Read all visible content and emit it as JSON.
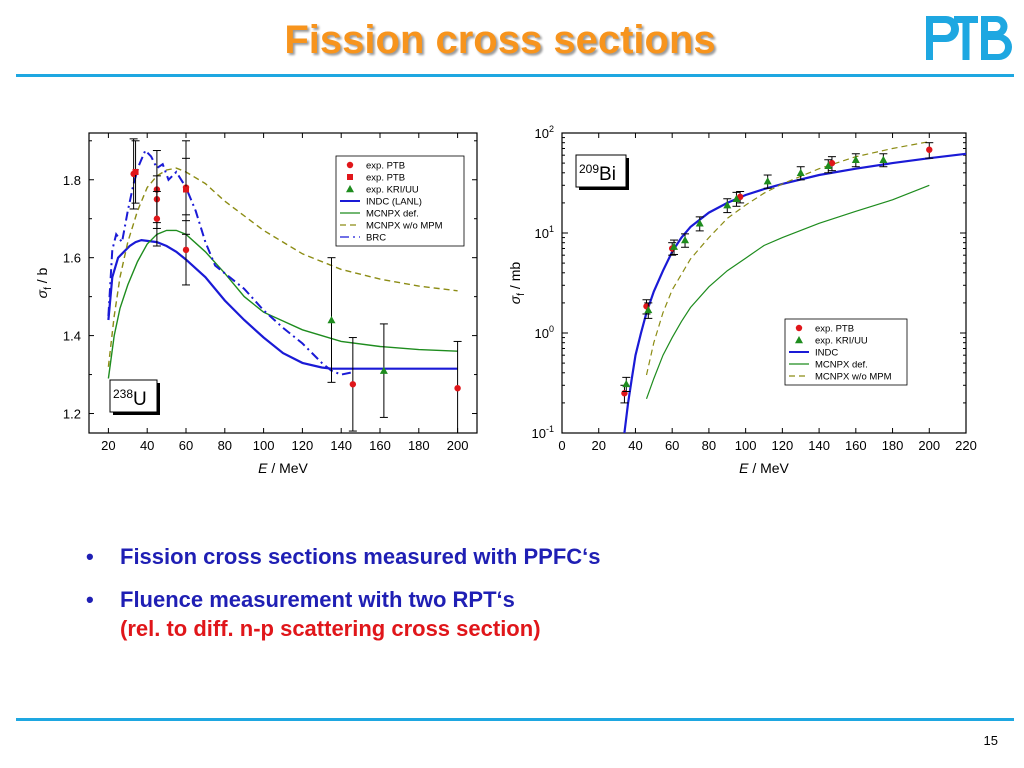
{
  "slide": {
    "title": "Fission cross sections",
    "logo_text": "PTB",
    "page_number": "15",
    "bullets": [
      {
        "text": "Fission cross sections measured with PPFC‘s"
      },
      {
        "text": "Fluence measurement with two RPT‘s",
        "sub_open": "(",
        "sub_text": "rel. to diff. n-p scattering cross section",
        "sub_close": ")"
      }
    ]
  },
  "colors": {
    "title": "#f7941d",
    "rule": "#1ea7e1",
    "bullet_text": "#1f1fb4",
    "bullet_highlight": "#e0161a",
    "exp_ptb": "#e0161a",
    "exp_kri": "#1e8c1e",
    "indc": "#1a1ad6",
    "mcnpx_def": "#1e8c1e",
    "mcnpx_wo_mpm": "#8c8c14",
    "brc": "#1a1ad6"
  },
  "chart_data": [
    {
      "type": "line",
      "panel_label": {
        "sup": "238",
        "base": "U"
      },
      "xlabel": "E",
      "xunit": " / MeV",
      "ylabel": "σ",
      "ysub": "f",
      "yunit": " / b",
      "xlim": [
        10,
        210
      ],
      "ylim": [
        1.15,
        1.92
      ],
      "x_ticks": [
        20,
        40,
        60,
        80,
        100,
        120,
        140,
        160,
        180,
        200
      ],
      "y_ticks": [
        1.2,
        1.4,
        1.6,
        1.8
      ],
      "y_tick_labels": [
        "1.2",
        "1.4",
        "1.6",
        "1.8"
      ],
      "legend_position": "top-right",
      "legend": [
        {
          "label": "exp. PTB",
          "kind": "circle",
          "color": "#e0161a"
        },
        {
          "label": "exp. PTB",
          "kind": "square",
          "color": "#e0161a"
        },
        {
          "label": "exp. KRI/UU",
          "kind": "triangle",
          "color": "#1e8c1e"
        },
        {
          "label": "INDC (LANL)",
          "kind": "solid",
          "color": "#1a1ad6"
        },
        {
          "label": "MCNPX def.",
          "kind": "solid-thin",
          "color": "#1e8c1e"
        },
        {
          "label": "MCNPX w/o MPM",
          "kind": "dashed",
          "color": "#8c8c14"
        },
        {
          "label": "BRC",
          "kind": "dashdot",
          "color": "#1a1ad6"
        }
      ],
      "series": [
        {
          "name": "INDC (LANL)",
          "style": "solid",
          "color": "#1a1ad6",
          "width": 2.2,
          "x": [
            20,
            22,
            25,
            28,
            31,
            34,
            37,
            40,
            45,
            50,
            55,
            60,
            70,
            80,
            90,
            100,
            110,
            120,
            130,
            135,
            140,
            150,
            160,
            180,
            200
          ],
          "y": [
            1.44,
            1.55,
            1.6,
            1.615,
            1.63,
            1.64,
            1.645,
            1.643,
            1.64,
            1.63,
            1.615,
            1.595,
            1.55,
            1.49,
            1.44,
            1.395,
            1.355,
            1.33,
            1.318,
            1.315,
            1.315,
            1.315,
            1.315,
            1.315,
            1.315
          ]
        },
        {
          "name": "MCNPX def.",
          "style": "solid",
          "color": "#1e8c1e",
          "width": 1.4,
          "x": [
            20,
            23,
            26,
            30,
            35,
            40,
            45,
            50,
            55,
            60,
            70,
            80,
            90,
            100,
            120,
            140,
            160,
            180,
            200
          ],
          "y": [
            1.29,
            1.4,
            1.47,
            1.53,
            1.59,
            1.635,
            1.66,
            1.67,
            1.67,
            1.66,
            1.615,
            1.56,
            1.5,
            1.46,
            1.415,
            1.385,
            1.372,
            1.364,
            1.36
          ]
        },
        {
          "name": "MCNPX w/o MPM",
          "style": "dashed",
          "color": "#8c8c14",
          "width": 1.4,
          "x": [
            20,
            23,
            26,
            30,
            35,
            40,
            45,
            50,
            55,
            60,
            70,
            80,
            100,
            120,
            140,
            160,
            180,
            200
          ],
          "y": [
            1.32,
            1.45,
            1.55,
            1.64,
            1.72,
            1.78,
            1.81,
            1.825,
            1.83,
            1.82,
            1.79,
            1.745,
            1.67,
            1.61,
            1.57,
            1.545,
            1.527,
            1.515
          ]
        },
        {
          "name": "BRC",
          "style": "dashdot",
          "color": "#1a1ad6",
          "width": 2.0,
          "x": [
            20,
            22,
            24,
            27,
            30,
            33,
            36,
            39,
            42,
            45,
            48,
            51,
            55,
            60,
            65,
            70,
            75,
            80,
            90,
            100,
            110,
            120,
            130,
            135,
            140,
            145
          ],
          "y": [
            1.45,
            1.62,
            1.66,
            1.64,
            1.72,
            1.79,
            1.84,
            1.875,
            1.86,
            1.83,
            1.84,
            1.8,
            1.82,
            1.78,
            1.72,
            1.64,
            1.58,
            1.56,
            1.52,
            1.465,
            1.42,
            1.38,
            1.33,
            1.31,
            1.3,
            1.305
          ]
        }
      ],
      "points": [
        {
          "series": "exp. PTB",
          "marker": "circle",
          "color": "#e0161a",
          "x": [
            33,
            45,
            45,
            45,
            60,
            60,
            146,
            200
          ],
          "y": [
            1.815,
            1.775,
            1.75,
            1.7,
            1.78,
            1.62,
            1.275,
            1.265
          ],
          "err": [
            0.09,
            0.1,
            0.06,
            0.07,
            0.12,
            0.09,
            0.12,
            0.12
          ]
        },
        {
          "series": "exp. PTB",
          "marker": "square",
          "color": "#e0161a",
          "x": [
            34,
            60
          ],
          "y": [
            1.82,
            1.775
          ],
          "err": [
            0.08,
            0.08
          ]
        },
        {
          "series": "exp. KRI/UU",
          "marker": "triangle",
          "color": "#1e8c1e",
          "x": [
            135,
            162
          ],
          "y": [
            1.44,
            1.31
          ],
          "err": [
            0.16,
            0.12
          ]
        }
      ]
    },
    {
      "type": "line",
      "panel_label": {
        "sup": "209",
        "base": "Bi"
      },
      "xlabel": "E",
      "xunit": " / MeV",
      "ylabel": "σ",
      "ysub": "f",
      "yunit": " / mb",
      "log_y": true,
      "xlim": [
        0,
        220
      ],
      "ylim": [
        -1,
        2
      ],
      "x_ticks": [
        0,
        20,
        40,
        60,
        80,
        100,
        120,
        140,
        160,
        180,
        200,
        220
      ],
      "y_tick_labels": [
        {
          "base": "10",
          "exp": "-1"
        },
        {
          "base": "10",
          "exp": "0"
        },
        {
          "base": "10",
          "exp": "1"
        },
        {
          "base": "10",
          "exp": "2"
        }
      ],
      "legend_position": "center-right",
      "legend": [
        {
          "label": "exp. PTB",
          "kind": "circle",
          "color": "#e0161a"
        },
        {
          "label": "exp. KRI/UU",
          "kind": "triangle",
          "color": "#1e8c1e"
        },
        {
          "label": "INDC",
          "kind": "solid",
          "color": "#1a1ad6"
        },
        {
          "label": "MCNPX def.",
          "kind": "solid-thin",
          "color": "#1e8c1e"
        },
        {
          "label": "MCNPX w/o MPM",
          "kind": "dashed",
          "color": "#8c8c14"
        }
      ],
      "series": [
        {
          "name": "INDC",
          "style": "solid",
          "color": "#1a1ad6",
          "width": 2.2,
          "x": [
            34,
            36,
            38,
            40,
            43,
            46,
            50,
            55,
            60,
            65,
            70,
            80,
            90,
            100,
            110,
            120,
            140,
            160,
            180,
            200,
            220
          ],
          "y": [
            0.1,
            0.2,
            0.35,
            0.6,
            1.0,
            1.6,
            2.6,
            4.2,
            6.5,
            9.0,
            11.5,
            16,
            20,
            24,
            27.5,
            31,
            38,
            44,
            50,
            56,
            62
          ]
        },
        {
          "name": "MCNPX def.",
          "style": "solid",
          "color": "#1e8c1e",
          "width": 1.2,
          "x": [
            46,
            50,
            55,
            60,
            65,
            70,
            80,
            90,
            100,
            110,
            120,
            140,
            160,
            180,
            200
          ],
          "y": [
            0.22,
            0.35,
            0.6,
            0.9,
            1.3,
            1.8,
            2.9,
            4.2,
            5.6,
            7.5,
            9.0,
            12.5,
            16.5,
            21.5,
            30
          ]
        },
        {
          "name": "MCNPX w/o MPM",
          "style": "dashed",
          "color": "#8c8c14",
          "width": 1.2,
          "x": [
            46,
            50,
            55,
            60,
            70,
            80,
            90,
            100,
            110,
            120,
            140,
            160,
            180,
            200
          ],
          "y": [
            0.38,
            0.8,
            1.6,
            2.7,
            5.5,
            9.0,
            14,
            19,
            25,
            31,
            44,
            58,
            70,
            82
          ]
        }
      ],
      "points": [
        {
          "series": "exp. PTB",
          "marker": "circle",
          "color": "#e0161a",
          "x": [
            34,
            46,
            60,
            97,
            147,
            200
          ],
          "y": [
            0.25,
            1.85,
            7.0,
            23,
            50,
            68
          ],
          "err": [
            0.05,
            0.3,
            1.0,
            3,
            8,
            12
          ]
        },
        {
          "series": "exp. KRI/UU",
          "marker": "triangle",
          "color": "#1e8c1e",
          "x": [
            35,
            47,
            61,
            67,
            75,
            90,
            95,
            112,
            130,
            145,
            160,
            175
          ],
          "y": [
            0.31,
            1.7,
            7.3,
            8.5,
            12.5,
            19,
            22,
            33,
            40,
            47,
            54,
            54
          ],
          "err": [
            0.05,
            0.3,
            1.2,
            1.3,
            2,
            3,
            3.5,
            5,
            6,
            7,
            8,
            8
          ]
        }
      ]
    }
  ]
}
